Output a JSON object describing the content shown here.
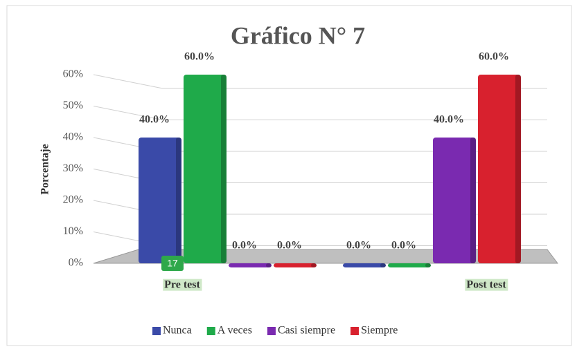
{
  "chart_data": {
    "type": "bar3d",
    "title": "Gráfico N° 7",
    "y_label": "Porcentaje",
    "categories": [
      "Pre test",
      "Post test"
    ],
    "series": [
      {
        "name": "Nunca",
        "color": "#3a4aa8",
        "values": [
          40,
          0
        ],
        "value_labels": [
          "40.0%",
          "0.0%"
        ]
      },
      {
        "name": "A veces",
        "color": "#1faa4a",
        "values": [
          60,
          0
        ],
        "value_labels": [
          "60.0%",
          "0.0%"
        ]
      },
      {
        "name": "Casi siempre",
        "color": "#7a2ab0",
        "values": [
          0,
          40
        ],
        "value_labels": [
          "0.0%",
          "40.0%"
        ]
      },
      {
        "name": "Siempre",
        "color": "#d8212e",
        "values": [
          0,
          60
        ],
        "value_labels": [
          "0.0%",
          "60.0%"
        ]
      }
    ],
    "ylim": [
      0,
      60
    ],
    "yticks": [
      {
        "value": 0,
        "label": "0%"
      },
      {
        "value": 10,
        "label": "10%"
      },
      {
        "value": 20,
        "label": "20%"
      },
      {
        "value": 30,
        "label": "30%"
      },
      {
        "value": 40,
        "label": "40%"
      },
      {
        "value": 50,
        "label": "50%"
      },
      {
        "value": 60,
        "label": "60%"
      }
    ],
    "grid": true,
    "legend": "bottom",
    "annotation": "17"
  }
}
